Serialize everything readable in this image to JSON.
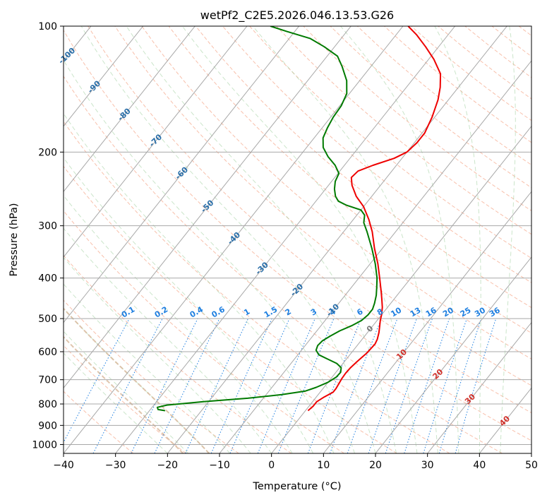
{
  "chart_data": {
    "type": "skew-t",
    "title": "wetPf2_C2E5.2026.046.13.53.G26",
    "xlabel": "Temperature (°C)",
    "ylabel": "Pressure (hPa)",
    "xlim": [
      -40,
      50
    ],
    "ylim": [
      1050,
      100
    ],
    "x_ticks": [
      -40,
      -30,
      -20,
      -10,
      0,
      10,
      20,
      30,
      40,
      50
    ],
    "y_ticks": [
      100,
      200,
      300,
      400,
      500,
      600,
      700,
      800,
      900,
      1000
    ],
    "colors": {
      "temperature": "#ee0000",
      "dewpoint": "#007a00",
      "isotherm": "#a8a8a8",
      "dry_adiabat": "#f5a587",
      "moist_adiabat": "#a9d4a6",
      "mixing_ratio": "#1e7fe0",
      "dendritic": "#d8b89a",
      "temp_label": "#2a6ea8",
      "zero_label": "#777777",
      "warm_label": "#d0302a"
    },
    "isotherm_labels": [
      "-100",
      "-90",
      "-80",
      "-70",
      "-60",
      "-50",
      "-40",
      "-30",
      "-20",
      "-10",
      "0",
      "10",
      "20",
      "30",
      "40"
    ],
    "mixing_ratio_labels": [
      "0.1",
      "0.2",
      "0.4",
      "0.6",
      "1",
      "1.5",
      "2",
      "3",
      "4",
      "6",
      "8",
      "10",
      "13",
      "16",
      "20",
      "25",
      "30",
      "36"
    ],
    "series": [
      {
        "name": "Temperature",
        "points": [
          {
            "p": 830,
            "t": 0.5
          },
          {
            "p": 810,
            "t": 0.8
          },
          {
            "p": 790,
            "t": 0.8
          },
          {
            "p": 770,
            "t": 1.5
          },
          {
            "p": 750,
            "t": 2.5
          },
          {
            "p": 735,
            "t": 2.5
          },
          {
            "p": 715,
            "t": 2.3
          },
          {
            "p": 695,
            "t": 2.1
          },
          {
            "p": 675,
            "t": 2.0
          },
          {
            "p": 655,
            "t": 2.1
          },
          {
            "p": 635,
            "t": 2.4
          },
          {
            "p": 620,
            "t": 2.7
          },
          {
            "p": 605,
            "t": 3.0
          },
          {
            "p": 590,
            "t": 3.1
          },
          {
            "p": 575,
            "t": 3.2
          },
          {
            "p": 560,
            "t": 2.9
          },
          {
            "p": 540,
            "t": 2.2
          },
          {
            "p": 520,
            "t": 1.3
          },
          {
            "p": 505,
            "t": 0.6
          },
          {
            "p": 490,
            "t": 0
          },
          {
            "p": 470,
            "t": -1
          },
          {
            "p": 450,
            "t": -2.3
          },
          {
            "p": 430,
            "t": -3.7
          },
          {
            "p": 400,
            "t": -6
          },
          {
            "p": 370,
            "t": -8.5
          },
          {
            "p": 340,
            "t": -11.5
          },
          {
            "p": 310,
            "t": -14.5
          },
          {
            "p": 290,
            "t": -17
          },
          {
            "p": 270,
            "t": -20
          },
          {
            "p": 255,
            "t": -23
          },
          {
            "p": 240,
            "t": -25.5
          },
          {
            "p": 230,
            "t": -26.8
          },
          {
            "p": 222,
            "t": -26.5
          },
          {
            "p": 215,
            "t": -24.5
          },
          {
            "p": 207,
            "t": -21.5
          },
          {
            "p": 200,
            "t": -20
          },
          {
            "p": 190,
            "t": -19.5
          },
          {
            "p": 180,
            "t": -19.5
          },
          {
            "p": 165,
            "t": -20.5
          },
          {
            "p": 150,
            "t": -22
          },
          {
            "p": 140,
            "t": -23.5
          },
          {
            "p": 130,
            "t": -25.5
          },
          {
            "p": 120,
            "t": -29
          },
          {
            "p": 112,
            "t": -32.5
          },
          {
            "p": 105,
            "t": -36
          },
          {
            "p": 100,
            "t": -39
          }
        ]
      },
      {
        "name": "Dewpoint",
        "points": [
          {
            "p": 830,
            "t": -27
          },
          {
            "p": 825,
            "t": -28.5
          },
          {
            "p": 815,
            "t": -29
          },
          {
            "p": 805,
            "t": -27.5
          },
          {
            "p": 790,
            "t": -21
          },
          {
            "p": 775,
            "t": -13
          },
          {
            "p": 760,
            "t": -7
          },
          {
            "p": 745,
            "t": -3
          },
          {
            "p": 730,
            "t": -1.5
          },
          {
            "p": 710,
            "t": 0
          },
          {
            "p": 690,
            "t": 0.8
          },
          {
            "p": 672,
            "t": 0.9
          },
          {
            "p": 655,
            "t": 0.3
          },
          {
            "p": 640,
            "t": -1.2
          },
          {
            "p": 625,
            "t": -3.6
          },
          {
            "p": 610,
            "t": -6
          },
          {
            "p": 595,
            "t": -7.2
          },
          {
            "p": 580,
            "t": -7.6
          },
          {
            "p": 565,
            "t": -7.4
          },
          {
            "p": 550,
            "t": -6.6
          },
          {
            "p": 535,
            "t": -5.6
          },
          {
            "p": 520,
            "t": -4.1
          },
          {
            "p": 505,
            "t": -3
          },
          {
            "p": 490,
            "t": -2.6
          },
          {
            "p": 475,
            "t": -2.6
          },
          {
            "p": 460,
            "t": -3.1
          },
          {
            "p": 440,
            "t": -4
          },
          {
            "p": 420,
            "t": -5.2
          },
          {
            "p": 400,
            "t": -6.5
          },
          {
            "p": 370,
            "t": -9
          },
          {
            "p": 340,
            "t": -12
          },
          {
            "p": 310,
            "t": -15.5
          },
          {
            "p": 295,
            "t": -17.5
          },
          {
            "p": 283,
            "t": -18.5
          },
          {
            "p": 275,
            "t": -20
          },
          {
            "p": 268,
            "t": -23.5
          },
          {
            "p": 262,
            "t": -25.7
          },
          {
            "p": 255,
            "t": -27
          },
          {
            "p": 245,
            "t": -28.3
          },
          {
            "p": 235,
            "t": -29.3
          },
          {
            "p": 225,
            "t": -29.8
          },
          {
            "p": 215,
            "t": -31.8
          },
          {
            "p": 205,
            "t": -34.5
          },
          {
            "p": 195,
            "t": -36.8
          },
          {
            "p": 185,
            "t": -38.3
          },
          {
            "p": 175,
            "t": -39
          },
          {
            "p": 165,
            "t": -39.5
          },
          {
            "p": 155,
            "t": -39.7
          },
          {
            "p": 145,
            "t": -40.5
          },
          {
            "p": 135,
            "t": -42.5
          },
          {
            "p": 125,
            "t": -45.5
          },
          {
            "p": 118,
            "t": -48
          },
          {
            "p": 112,
            "t": -52
          },
          {
            "p": 107,
            "t": -56
          },
          {
            "p": 103,
            "t": -61.5
          },
          {
            "p": 100,
            "t": -65.5
          }
        ]
      }
    ]
  }
}
